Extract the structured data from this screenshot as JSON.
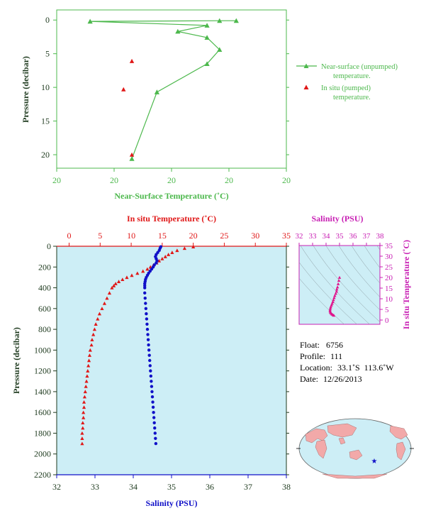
{
  "colors": {
    "green": "#4cb84c",
    "red": "#e01818",
    "blue": "#1010c8",
    "magenta": "#c820b4",
    "panel_bg": "#cdeef6",
    "axis_dark": "#1e3a1e"
  },
  "top_chart": {
    "ylabel": "Pressure (decibar)",
    "xlabel": "Near-Surface Temperature (˚C)",
    "x_tick_labels": [
      "20",
      "20",
      "20",
      "20",
      "20"
    ],
    "y_tick_labels": [
      "0",
      "5",
      "10",
      "15",
      "20"
    ],
    "legend": {
      "near_surface_line1": "Near-surface (unpumped)",
      "near_surface_line2": "temperature.",
      "in_situ_line1": "In situ (pumped)",
      "in_situ_line2": "temperature."
    }
  },
  "profile_chart": {
    "top_axis_label": "In situ Temperature (˚C)",
    "top_tick_labels": [
      "0",
      "5",
      "10",
      "15",
      "20",
      "25",
      "30",
      "35"
    ],
    "bottom_axis_label": "Salinity (PSU)",
    "bottom_tick_labels": [
      "32",
      "33",
      "34",
      "35",
      "36",
      "37",
      "38"
    ],
    "ylabel": "Pressure (decibar)",
    "y_tick_labels": [
      "0",
      "200",
      "400",
      "600",
      "800",
      "1000",
      "1200",
      "1400",
      "1600",
      "1800",
      "2000",
      "2200"
    ]
  },
  "ts_chart": {
    "top_label": "Salinity (PSU)",
    "top_tick_labels": [
      "32",
      "33",
      "34",
      "35",
      "36",
      "37",
      "38"
    ],
    "right_label": "In situ Temperature (˚C)",
    "right_tick_labels": [
      "0",
      "5",
      "10",
      "15",
      "20",
      "25",
      "30",
      "35"
    ]
  },
  "float_info": {
    "float_label": "Float:",
    "float_value": "6756",
    "profile_label": "Profile:",
    "profile_value": "111",
    "location_label": "Location:",
    "location_value": "33.1˚S  113.6˚W",
    "date_label": "Date:",
    "date_value": "12/26/2013"
  },
  "map": {
    "marker": "float-position-star",
    "ocean_color": "#cdeef6",
    "land_color": "#f2a9a9"
  },
  "chart_data": [
    {
      "type": "scatter",
      "title": "",
      "xlabel": "Near-Surface Temperature (˚C)",
      "ylabel": "Pressure (decibar)",
      "xlim": [
        17,
        22.5
      ],
      "ylim": [
        22,
        -1.5
      ],
      "series": [
        {
          "name": "Near-surface (unpumped) temperature.",
          "style": "line-triangle",
          "points": [
            [
              21.3,
              0.1
            ],
            [
              20.9,
              0.1
            ],
            [
              17.8,
              0.2
            ],
            [
              20.6,
              0.8
            ],
            [
              19.9,
              1.7
            ],
            [
              20.6,
              2.6
            ],
            [
              20.9,
              4.4
            ],
            [
              20.6,
              6.5
            ],
            [
              19.4,
              10.7
            ],
            [
              18.8,
              20.6
            ]
          ]
        },
        {
          "name": "In situ (pumped) temperature.",
          "style": "triangle",
          "points": [
            [
              18.8,
              6.1
            ],
            [
              18.6,
              10.3
            ],
            [
              18.8,
              20.0
            ]
          ]
        }
      ]
    },
    {
      "type": "scatter",
      "title": "",
      "ylabel": "Pressure (decibar)",
      "ylim": [
        2200,
        0
      ],
      "temperature_axis": {
        "label": "In situ Temperature (˚C)",
        "range": [
          -2,
          35
        ]
      },
      "salinity_axis": {
        "label": "Salinity (PSU)",
        "range": [
          32,
          38
        ]
      },
      "series": [
        {
          "name": "In situ Temperature",
          "axis": "temperature",
          "points": [
            [
              20.0,
              5
            ],
            [
              18.6,
              20
            ],
            [
              17.4,
              40
            ],
            [
              16.6,
              60
            ],
            [
              16.0,
              80
            ],
            [
              15.5,
              100
            ],
            [
              15.0,
              120
            ],
            [
              14.5,
              140
            ],
            [
              14.1,
              160
            ],
            [
              13.6,
              180
            ],
            [
              13.1,
              200
            ],
            [
              12.6,
              220
            ],
            [
              11.9,
              240
            ],
            [
              11.0,
              260
            ],
            [
              10.1,
              280
            ],
            [
              9.3,
              300
            ],
            [
              8.6,
              320
            ],
            [
              8.0,
              340
            ],
            [
              7.5,
              360
            ],
            [
              7.2,
              380
            ],
            [
              6.9,
              400
            ],
            [
              6.5,
              450
            ],
            [
              6.1,
              500
            ],
            [
              5.7,
              550
            ],
            [
              5.3,
              600
            ],
            [
              4.9,
              650
            ],
            [
              4.6,
              700
            ],
            [
              4.3,
              750
            ],
            [
              4.1,
              800
            ],
            [
              3.9,
              850
            ],
            [
              3.7,
              900
            ],
            [
              3.6,
              950
            ],
            [
              3.4,
              1000
            ],
            [
              3.3,
              1050
            ],
            [
              3.2,
              1100
            ],
            [
              3.1,
              1150
            ],
            [
              3.0,
              1200
            ],
            [
              2.9,
              1250
            ],
            [
              2.8,
              1300
            ],
            [
              2.7,
              1350
            ],
            [
              2.6,
              1400
            ],
            [
              2.5,
              1450
            ],
            [
              2.4,
              1500
            ],
            [
              2.4,
              1550
            ],
            [
              2.3,
              1600
            ],
            [
              2.3,
              1650
            ],
            [
              2.2,
              1700
            ],
            [
              2.2,
              1750
            ],
            [
              2.1,
              1800
            ],
            [
              2.1,
              1850
            ],
            [
              2.1,
              1900
            ]
          ]
        },
        {
          "name": "Salinity",
          "axis": "salinity",
          "points": [
            [
              34.72,
              5
            ],
            [
              34.7,
              20
            ],
            [
              34.68,
              40
            ],
            [
              34.64,
              60
            ],
            [
              34.6,
              80
            ],
            [
              34.58,
              100
            ],
            [
              34.6,
              120
            ],
            [
              34.62,
              140
            ],
            [
              34.6,
              160
            ],
            [
              34.55,
              180
            ],
            [
              34.52,
              200
            ],
            [
              34.48,
              220
            ],
            [
              34.44,
              240
            ],
            [
              34.4,
              260
            ],
            [
              34.37,
              280
            ],
            [
              34.34,
              300
            ],
            [
              34.32,
              320
            ],
            [
              34.31,
              340
            ],
            [
              34.3,
              360
            ],
            [
              34.3,
              380
            ],
            [
              34.3,
              400
            ],
            [
              34.3,
              450
            ],
            [
              34.31,
              500
            ],
            [
              34.32,
              550
            ],
            [
              34.33,
              600
            ],
            [
              34.34,
              650
            ],
            [
              34.35,
              700
            ],
            [
              34.36,
              750
            ],
            [
              34.37,
              800
            ],
            [
              34.38,
              850
            ],
            [
              34.39,
              900
            ],
            [
              34.4,
              950
            ],
            [
              34.41,
              1000
            ],
            [
              34.42,
              1050
            ],
            [
              34.43,
              1100
            ],
            [
              34.44,
              1150
            ],
            [
              34.45,
              1200
            ],
            [
              34.46,
              1250
            ],
            [
              34.47,
              1300
            ],
            [
              34.48,
              1350
            ],
            [
              34.49,
              1400
            ],
            [
              34.5,
              1450
            ],
            [
              34.51,
              1500
            ],
            [
              34.52,
              1550
            ],
            [
              34.53,
              1600
            ],
            [
              34.54,
              1650
            ],
            [
              34.55,
              1700
            ],
            [
              34.56,
              1750
            ],
            [
              34.57,
              1800
            ],
            [
              34.58,
              1850
            ],
            [
              34.59,
              1900
            ]
          ]
        }
      ]
    },
    {
      "type": "scatter",
      "title": "",
      "xlabel": "Salinity (PSU)",
      "ylabel": "In situ Temperature (˚C)",
      "xlim": [
        32,
        38
      ],
      "ylim": [
        -2,
        35
      ],
      "grid": "density contours",
      "series": [
        {
          "name": "T-S profile",
          "points": [
            [
              35.0,
              20.0
            ],
            [
              34.95,
              18.6
            ],
            [
              34.9,
              17.0
            ],
            [
              34.85,
              15.5
            ],
            [
              34.8,
              14.5
            ],
            [
              34.78,
              13.5
            ],
            [
              34.72,
              12.5
            ],
            [
              34.65,
              11.5
            ],
            [
              34.6,
              10.5
            ],
            [
              34.55,
              9.5
            ],
            [
              34.5,
              8.6
            ],
            [
              34.45,
              7.8
            ],
            [
              34.4,
              7.0
            ],
            [
              34.35,
              6.2
            ],
            [
              34.32,
              5.5
            ],
            [
              34.3,
              4.8
            ],
            [
              34.3,
              4.2
            ],
            [
              34.32,
              3.6
            ],
            [
              34.38,
              3.1
            ],
            [
              34.45,
              2.7
            ],
            [
              34.52,
              2.4
            ],
            [
              34.58,
              2.2
            ]
          ]
        }
      ]
    }
  ]
}
